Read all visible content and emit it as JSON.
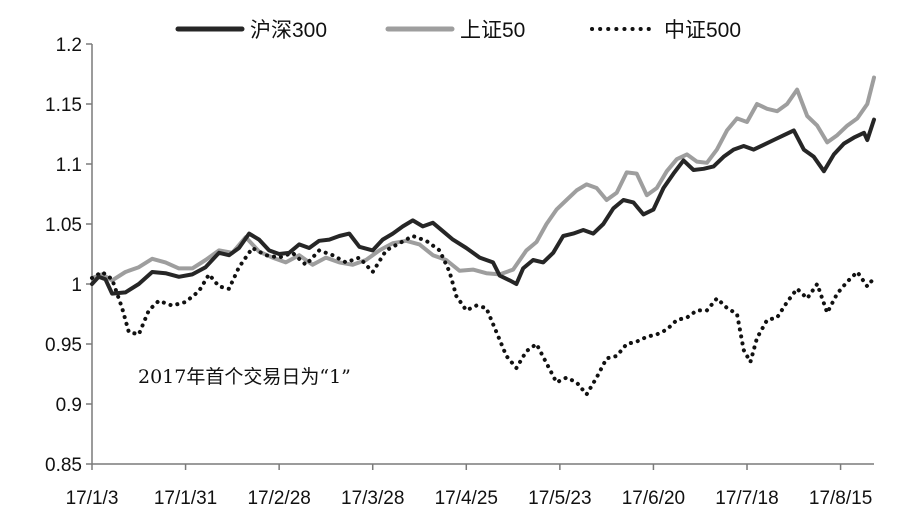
{
  "chart_data": {
    "type": "line",
    "title": "",
    "xlabel": "",
    "ylabel": "",
    "ylim": [
      0.85,
      1.2
    ],
    "yticks": [
      0.85,
      0.9,
      0.95,
      1,
      1.05,
      1.1,
      1.15,
      1.2
    ],
    "ytick_labels": [
      "0.85",
      "0.9",
      "0.95",
      "1",
      "1.05",
      "1.1",
      "1.15",
      "1.2"
    ],
    "xlim": [
      "2017-01-03",
      "2017-08-25"
    ],
    "xticks": [
      "2017-01-03",
      "2017-01-31",
      "2017-02-28",
      "2017-03-28",
      "2017-04-25",
      "2017-05-23",
      "2017-06-20",
      "2017-07-18",
      "2017-08-15"
    ],
    "xtick_labels": [
      "17/1/3",
      "17/1/31",
      "17/2/28",
      "17/3/28",
      "17/4/25",
      "17/5/23",
      "17/6/20",
      "17/7/18",
      "17/8/15"
    ],
    "grid": false,
    "legend_position": "top",
    "annotation": "2017年首个交易日为“1”",
    "series": [
      {
        "name": "沪深300",
        "color": "#262626",
        "style": "solid",
        "points": [
          [
            "2017-01-03",
            1.0
          ],
          [
            "2017-01-05",
            1.006
          ],
          [
            "2017-01-07",
            1.004
          ],
          [
            "2017-01-09",
            0.992
          ],
          [
            "2017-01-13",
            0.993
          ],
          [
            "2017-01-17",
            1.0
          ],
          [
            "2017-01-21",
            1.01
          ],
          [
            "2017-01-25",
            1.009
          ],
          [
            "2017-01-29",
            1.006
          ],
          [
            "2017-02-02",
            1.008
          ],
          [
            "2017-02-06",
            1.014
          ],
          [
            "2017-02-10",
            1.026
          ],
          [
            "2017-02-13",
            1.024
          ],
          [
            "2017-02-16",
            1.03
          ],
          [
            "2017-02-19",
            1.042
          ],
          [
            "2017-02-22",
            1.037
          ],
          [
            "2017-02-25",
            1.028
          ],
          [
            "2017-02-28",
            1.025
          ],
          [
            "2017-03-03",
            1.026
          ],
          [
            "2017-03-06",
            1.033
          ],
          [
            "2017-03-09",
            1.03
          ],
          [
            "2017-03-12",
            1.036
          ],
          [
            "2017-03-15",
            1.037
          ],
          [
            "2017-03-18",
            1.04
          ],
          [
            "2017-03-21",
            1.042
          ],
          [
            "2017-03-24",
            1.031
          ],
          [
            "2017-03-28",
            1.028
          ],
          [
            "2017-03-31",
            1.037
          ],
          [
            "2017-04-03",
            1.042
          ],
          [
            "2017-04-06",
            1.048
          ],
          [
            "2017-04-09",
            1.053
          ],
          [
            "2017-04-12",
            1.048
          ],
          [
            "2017-04-15",
            1.051
          ],
          [
            "2017-04-18",
            1.044
          ],
          [
            "2017-04-21",
            1.037
          ],
          [
            "2017-04-25",
            1.03
          ],
          [
            "2017-04-29",
            1.022
          ],
          [
            "2017-05-03",
            1.018
          ],
          [
            "2017-05-05",
            1.007
          ],
          [
            "2017-05-08",
            1.003
          ],
          [
            "2017-05-10",
            1.0
          ],
          [
            "2017-05-12",
            1.013
          ],
          [
            "2017-05-15",
            1.02
          ],
          [
            "2017-05-18",
            1.018
          ],
          [
            "2017-05-21",
            1.026
          ],
          [
            "2017-05-24",
            1.04
          ],
          [
            "2017-05-27",
            1.042
          ],
          [
            "2017-05-30",
            1.045
          ],
          [
            "2017-06-02",
            1.042
          ],
          [
            "2017-06-05",
            1.05
          ],
          [
            "2017-06-08",
            1.063
          ],
          [
            "2017-06-11",
            1.07
          ],
          [
            "2017-06-14",
            1.068
          ],
          [
            "2017-06-17",
            1.058
          ],
          [
            "2017-06-20",
            1.062
          ],
          [
            "2017-06-23",
            1.08
          ],
          [
            "2017-06-26",
            1.092
          ],
          [
            "2017-06-29",
            1.103
          ],
          [
            "2017-07-02",
            1.095
          ],
          [
            "2017-07-05",
            1.096
          ],
          [
            "2017-07-08",
            1.098
          ],
          [
            "2017-07-11",
            1.106
          ],
          [
            "2017-07-14",
            1.112
          ],
          [
            "2017-07-17",
            1.115
          ],
          [
            "2017-07-20",
            1.112
          ],
          [
            "2017-07-23",
            1.116
          ],
          [
            "2017-07-26",
            1.12
          ],
          [
            "2017-07-29",
            1.124
          ],
          [
            "2017-08-01",
            1.128
          ],
          [
            "2017-08-04",
            1.112
          ],
          [
            "2017-08-07",
            1.106
          ],
          [
            "2017-08-10",
            1.094
          ],
          [
            "2017-08-13",
            1.108
          ],
          [
            "2017-08-16",
            1.117
          ],
          [
            "2017-08-19",
            1.122
          ],
          [
            "2017-08-22",
            1.126
          ],
          [
            "2017-08-23",
            1.12
          ],
          [
            "2017-08-25",
            1.137
          ]
        ]
      },
      {
        "name": "上证50",
        "color": "#9e9e9e",
        "style": "solid",
        "points": [
          [
            "2017-01-03",
            1.005
          ],
          [
            "2017-01-06",
            1.008
          ],
          [
            "2017-01-09",
            1.003
          ],
          [
            "2017-01-13",
            1.01
          ],
          [
            "2017-01-17",
            1.014
          ],
          [
            "2017-01-21",
            1.021
          ],
          [
            "2017-01-25",
            1.018
          ],
          [
            "2017-01-29",
            1.013
          ],
          [
            "2017-02-02",
            1.013
          ],
          [
            "2017-02-06",
            1.02
          ],
          [
            "2017-02-10",
            1.028
          ],
          [
            "2017-02-14",
            1.026
          ],
          [
            "2017-02-18",
            1.039
          ],
          [
            "2017-02-22",
            1.027
          ],
          [
            "2017-02-26",
            1.022
          ],
          [
            "2017-03-02",
            1.018
          ],
          [
            "2017-03-06",
            1.024
          ],
          [
            "2017-03-10",
            1.016
          ],
          [
            "2017-03-14",
            1.022
          ],
          [
            "2017-03-18",
            1.018
          ],
          [
            "2017-03-22",
            1.016
          ],
          [
            "2017-03-26",
            1.02
          ],
          [
            "2017-03-30",
            1.028
          ],
          [
            "2017-04-03",
            1.034
          ],
          [
            "2017-04-07",
            1.036
          ],
          [
            "2017-04-11",
            1.033
          ],
          [
            "2017-04-15",
            1.024
          ],
          [
            "2017-04-19",
            1.02
          ],
          [
            "2017-04-23",
            1.011
          ],
          [
            "2017-04-27",
            1.012
          ],
          [
            "2017-05-01",
            1.009
          ],
          [
            "2017-05-05",
            1.008
          ],
          [
            "2017-05-09",
            1.012
          ],
          [
            "2017-05-13",
            1.028
          ],
          [
            "2017-05-16",
            1.035
          ],
          [
            "2017-05-19",
            1.05
          ],
          [
            "2017-05-22",
            1.062
          ],
          [
            "2017-05-25",
            1.07
          ],
          [
            "2017-05-28",
            1.078
          ],
          [
            "2017-05-31",
            1.083
          ],
          [
            "2017-06-03",
            1.08
          ],
          [
            "2017-06-06",
            1.07
          ],
          [
            "2017-06-09",
            1.076
          ],
          [
            "2017-06-12",
            1.093
          ],
          [
            "2017-06-15",
            1.092
          ],
          [
            "2017-06-18",
            1.074
          ],
          [
            "2017-06-21",
            1.08
          ],
          [
            "2017-06-24",
            1.094
          ],
          [
            "2017-06-27",
            1.104
          ],
          [
            "2017-06-30",
            1.108
          ],
          [
            "2017-07-03",
            1.102
          ],
          [
            "2017-07-06",
            1.101
          ],
          [
            "2017-07-09",
            1.112
          ],
          [
            "2017-07-12",
            1.128
          ],
          [
            "2017-07-15",
            1.138
          ],
          [
            "2017-07-18",
            1.135
          ],
          [
            "2017-07-21",
            1.15
          ],
          [
            "2017-07-24",
            1.146
          ],
          [
            "2017-07-27",
            1.144
          ],
          [
            "2017-07-30",
            1.15
          ],
          [
            "2017-08-02",
            1.162
          ],
          [
            "2017-08-05",
            1.14
          ],
          [
            "2017-08-08",
            1.132
          ],
          [
            "2017-08-11",
            1.118
          ],
          [
            "2017-08-14",
            1.124
          ],
          [
            "2017-08-17",
            1.132
          ],
          [
            "2017-08-20",
            1.138
          ],
          [
            "2017-08-23",
            1.15
          ],
          [
            "2017-08-25",
            1.172
          ]
        ]
      },
      {
        "name": "中证500",
        "color": "#111111",
        "style": "dotted",
        "points": [
          [
            "2017-01-03",
            1.005
          ],
          [
            "2017-01-06",
            1.01
          ],
          [
            "2017-01-09",
            1.004
          ],
          [
            "2017-01-12",
            0.98
          ],
          [
            "2017-01-14",
            0.96
          ],
          [
            "2017-01-17",
            0.958
          ],
          [
            "2017-01-20",
            0.978
          ],
          [
            "2017-01-23",
            0.986
          ],
          [
            "2017-01-27",
            0.982
          ],
          [
            "2017-01-31",
            0.985
          ],
          [
            "2017-02-04",
            0.994
          ],
          [
            "2017-02-07",
            1.008
          ],
          [
            "2017-02-10",
            0.998
          ],
          [
            "2017-02-13",
            0.996
          ],
          [
            "2017-02-16",
            1.014
          ],
          [
            "2017-02-20",
            1.03
          ],
          [
            "2017-02-24",
            1.024
          ],
          [
            "2017-02-28",
            1.022
          ],
          [
            "2017-03-04",
            1.026
          ],
          [
            "2017-03-08",
            1.016
          ],
          [
            "2017-03-12",
            1.028
          ],
          [
            "2017-03-16",
            1.024
          ],
          [
            "2017-03-20",
            1.018
          ],
          [
            "2017-03-24",
            1.022
          ],
          [
            "2017-03-28",
            1.01
          ],
          [
            "2017-04-01",
            1.028
          ],
          [
            "2017-04-05",
            1.034
          ],
          [
            "2017-04-09",
            1.04
          ],
          [
            "2017-04-13",
            1.036
          ],
          [
            "2017-04-17",
            1.028
          ],
          [
            "2017-04-20",
            1.01
          ],
          [
            "2017-04-22",
            0.99
          ],
          [
            "2017-04-25",
            0.978
          ],
          [
            "2017-04-28",
            0.982
          ],
          [
            "2017-05-01",
            0.98
          ],
          [
            "2017-05-04",
            0.96
          ],
          [
            "2017-05-07",
            0.94
          ],
          [
            "2017-05-10",
            0.93
          ],
          [
            "2017-05-13",
            0.944
          ],
          [
            "2017-05-16",
            0.95
          ],
          [
            "2017-05-19",
            0.934
          ],
          [
            "2017-05-22",
            0.918
          ],
          [
            "2017-05-25",
            0.922
          ],
          [
            "2017-05-28",
            0.918
          ],
          [
            "2017-05-31",
            0.908
          ],
          [
            "2017-06-03",
            0.922
          ],
          [
            "2017-06-06",
            0.938
          ],
          [
            "2017-06-09",
            0.94
          ],
          [
            "2017-06-12",
            0.95
          ],
          [
            "2017-06-15",
            0.952
          ],
          [
            "2017-06-18",
            0.956
          ],
          [
            "2017-06-21",
            0.958
          ],
          [
            "2017-06-24",
            0.962
          ],
          [
            "2017-06-27",
            0.97
          ],
          [
            "2017-06-30",
            0.972
          ],
          [
            "2017-07-03",
            0.978
          ],
          [
            "2017-07-06",
            0.978
          ],
          [
            "2017-07-09",
            0.988
          ],
          [
            "2017-07-12",
            0.98
          ],
          [
            "2017-07-15",
            0.975
          ],
          [
            "2017-07-17",
            0.945
          ],
          [
            "2017-07-19",
            0.935
          ],
          [
            "2017-07-21",
            0.955
          ],
          [
            "2017-07-24",
            0.97
          ],
          [
            "2017-07-27",
            0.972
          ],
          [
            "2017-07-30",
            0.985
          ],
          [
            "2017-08-02",
            0.996
          ],
          [
            "2017-08-05",
            0.988
          ],
          [
            "2017-08-08",
            1.0
          ],
          [
            "2017-08-11",
            0.976
          ],
          [
            "2017-08-14",
            0.992
          ],
          [
            "2017-08-17",
            1.002
          ],
          [
            "2017-08-20",
            1.01
          ],
          [
            "2017-08-23",
            0.998
          ],
          [
            "2017-08-25",
            1.005
          ]
        ]
      }
    ]
  }
}
